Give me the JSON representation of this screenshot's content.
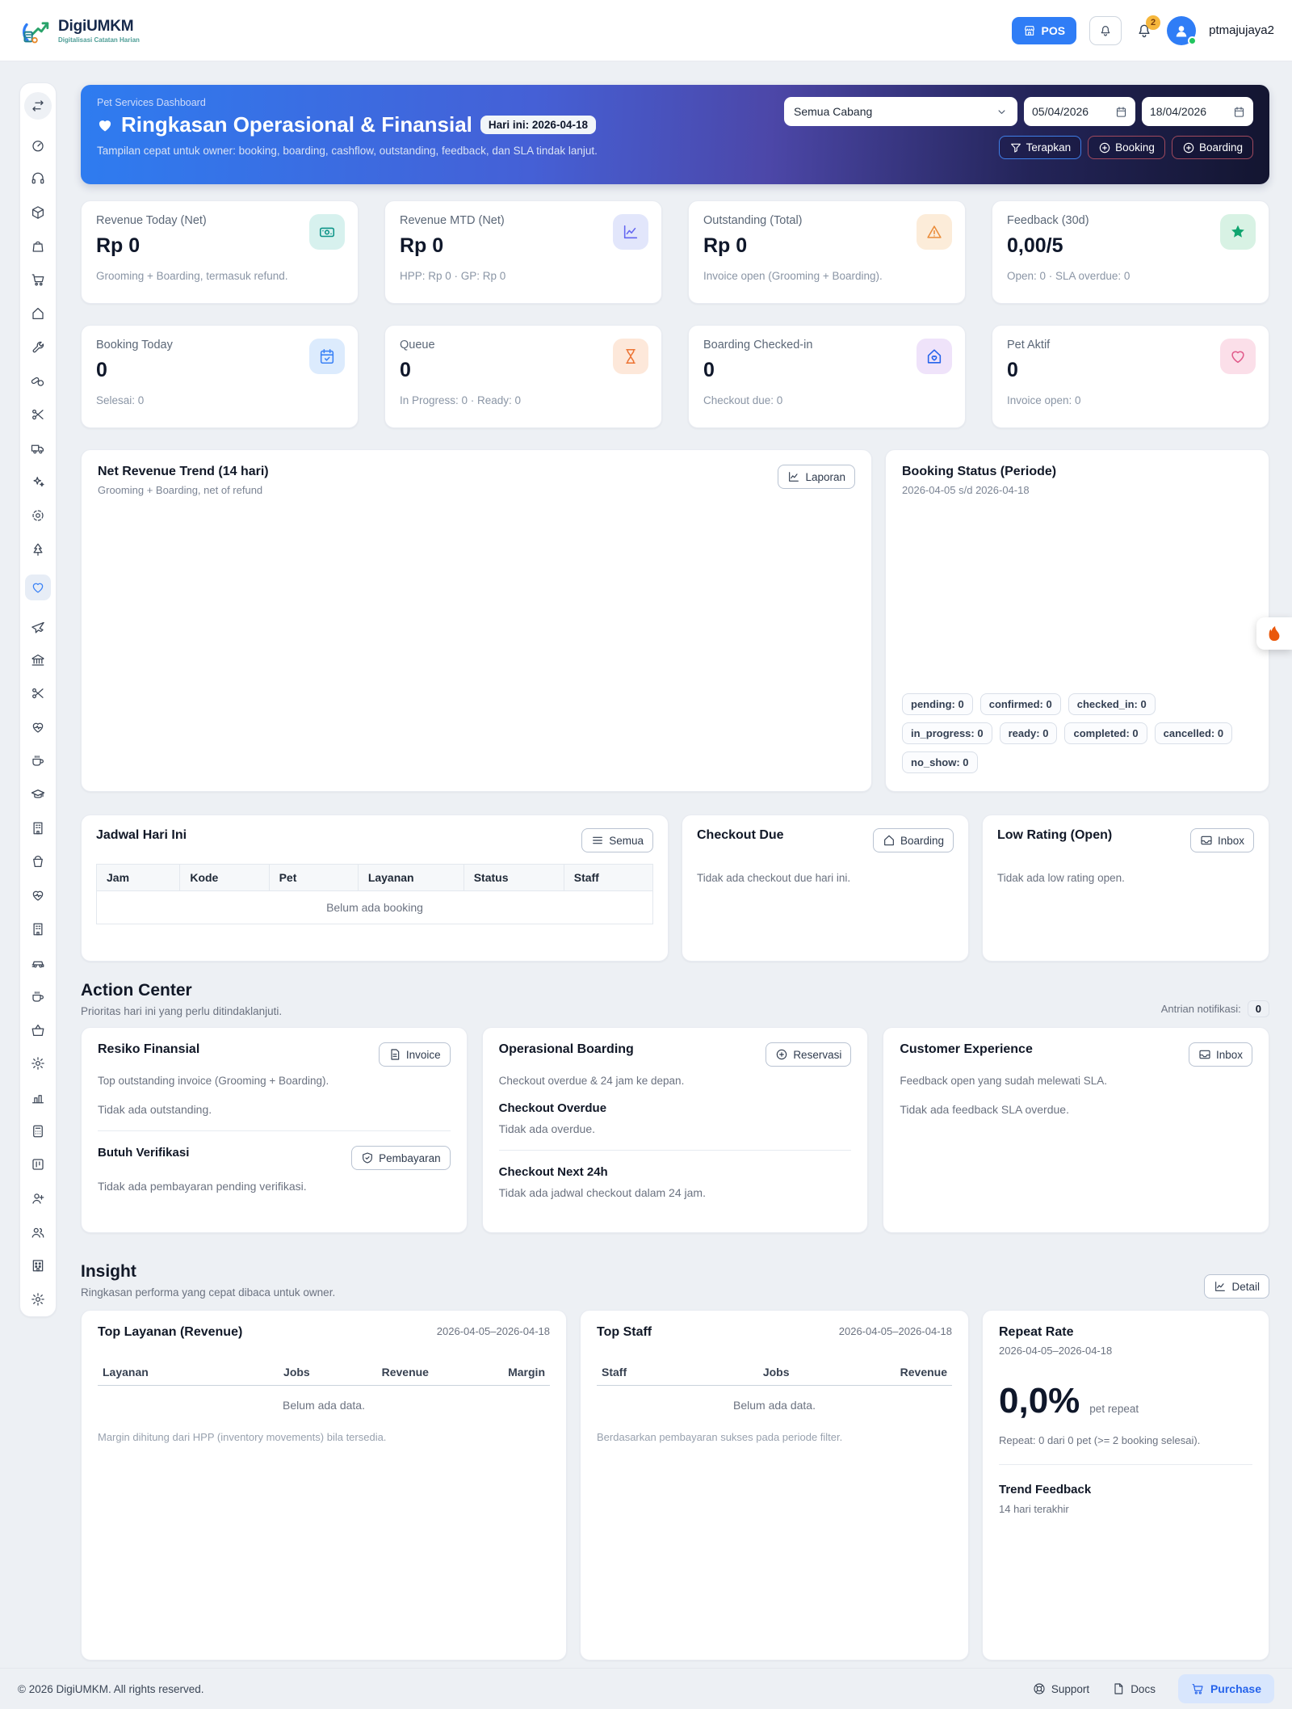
{
  "colors": {
    "accent": "#2f7df6",
    "badge_amber": "#f6b73c",
    "flame": "#ea580c"
  },
  "header": {
    "brand": {
      "name": "DigiUMKM",
      "tagline": "Digitalisasi Catatan Harian"
    },
    "pos_label": "POS",
    "notif_badge": "2",
    "username": "ptmajujaya2"
  },
  "sidebar": {
    "items": [
      {
        "icon": "arrows",
        "name": "sidebar-toggle",
        "kind": "toggle"
      },
      {
        "icon": "gauge",
        "name": "dashboard"
      },
      {
        "icon": "headset",
        "name": "support"
      },
      {
        "icon": "package",
        "name": "inventory"
      },
      {
        "icon": "bag",
        "name": "purchases"
      },
      {
        "icon": "cart",
        "name": "sales"
      },
      {
        "icon": "home",
        "name": "home"
      },
      {
        "icon": "wrench",
        "name": "services"
      },
      {
        "icon": "pills",
        "name": "pharmacy"
      },
      {
        "icon": "scissors",
        "name": "grooming"
      },
      {
        "icon": "truck",
        "name": "logistics"
      },
      {
        "icon": "sparkles",
        "name": "cleaning"
      },
      {
        "icon": "flower",
        "name": "florist"
      },
      {
        "icon": "tree",
        "name": "garden"
      },
      {
        "icon": "heart",
        "name": "pet-services",
        "active": true
      },
      {
        "icon": "plane",
        "name": "travel"
      },
      {
        "icon": "bank",
        "name": "finance"
      },
      {
        "icon": "scissors",
        "name": "salon"
      },
      {
        "icon": "heartpulse",
        "name": "clinic"
      },
      {
        "icon": "coffee",
        "name": "cafe"
      },
      {
        "icon": "grad",
        "name": "education"
      },
      {
        "icon": "building",
        "name": "property"
      },
      {
        "icon": "bucket",
        "name": "laundry"
      },
      {
        "icon": "heartpulse",
        "name": "health"
      },
      {
        "icon": "building",
        "name": "hotel"
      },
      {
        "icon": "car",
        "name": "rental"
      },
      {
        "icon": "coffee",
        "name": "fnb"
      },
      {
        "icon": "basket",
        "name": "retail"
      },
      {
        "icon": "gear",
        "name": "workshop"
      },
      {
        "icon": "chartcol",
        "name": "reports"
      },
      {
        "icon": "calc",
        "name": "accounting"
      },
      {
        "icon": "kanban",
        "name": "projects"
      },
      {
        "icon": "useradd",
        "name": "crm"
      },
      {
        "icon": "users",
        "name": "hr"
      },
      {
        "icon": "building2",
        "name": "company"
      },
      {
        "icon": "gear",
        "name": "settings"
      }
    ]
  },
  "hero": {
    "eyebrow": "Pet Services Dashboard",
    "title": "Ringkasan Operasional & Finansial",
    "today_badge": "Hari ini: 2026-04-18",
    "subtitle": "Tampilan cepat untuk owner: booking, boarding, cashflow, outstanding, feedback, dan SLA tindak lanjut.",
    "branch_select": "Semua Cabang",
    "date_from": "05/04/2026",
    "date_to": "18/04/2026",
    "btn_apply": "Terapkan",
    "btn_booking": "Booking",
    "btn_boarding": "Boarding"
  },
  "kpis": [
    {
      "label": "Revenue Today (Net)",
      "value": "Rp 0",
      "sub": "Grooming + Boarding, termasuk refund.",
      "icon": "banknote",
      "fg": "#0d9488",
      "bg": "#d7f1ee"
    },
    {
      "label": "Revenue MTD (Net)",
      "value": "Rp 0",
      "sub": "HPP: Rp 0 · GP: Rp 0",
      "icon": "linechart",
      "fg": "#6366f1",
      "bg": "#e2e6fb"
    },
    {
      "label": "Outstanding (Total)",
      "value": "Rp 0",
      "sub": "Invoice open (Grooming + Boarding).",
      "icon": "warning",
      "fg": "#ea8c3a",
      "bg": "#fcecd9"
    },
    {
      "label": "Feedback (30d)",
      "value": "0,00/5",
      "sub": "Open: 0 · SLA overdue: 0",
      "icon": "star",
      "fg": "#10a56f",
      "bg": "#d8f2e4"
    },
    {
      "label": "Booking Today",
      "value": "0",
      "sub": "Selesai: 0",
      "icon": "calcheck",
      "fg": "#3b82f6",
      "bg": "#dcebfd"
    },
    {
      "label": "Queue",
      "value": "0",
      "sub": "In Progress: 0 · Ready: 0",
      "icon": "hourglass",
      "fg": "#ed7434",
      "bg": "#fde8da"
    },
    {
      "label": "Boarding Checked-in",
      "value": "0",
      "sub": "Checkout due: 0",
      "icon": "homeheart",
      "fg": "#2563eb",
      "bg": "#efe3fa"
    },
    {
      "label": "Pet Aktif",
      "value": "0",
      "sub": "Invoice open: 0",
      "icon": "heart",
      "fg": "#e15b8b",
      "bg": "#fbdfe9"
    }
  ],
  "charts": {
    "trend": {
      "title": "Net Revenue Trend (14 hari)",
      "subtitle": "Grooming + Boarding, net of refund",
      "action": "Laporan"
    },
    "status": {
      "title": "Booking Status (Periode)",
      "subtitle": "2026-04-05 s/d 2026-04-18",
      "chips": [
        "pending: 0",
        "confirmed: 0",
        "checked_in: 0",
        "in_progress: 0",
        "ready: 0",
        "completed: 0",
        "cancelled: 0",
        "no_show: 0"
      ]
    }
  },
  "today": {
    "jadwal": {
      "title": "Jadwal Hari Ini",
      "action": "Semua",
      "columns": [
        "Jam",
        "Kode",
        "Pet",
        "Layanan",
        "Status",
        "Staff"
      ],
      "empty": "Belum ada booking"
    },
    "checkout": {
      "title": "Checkout Due",
      "action": "Boarding",
      "empty": "Tidak ada checkout due hari ini."
    },
    "lowrating": {
      "title": "Low Rating (Open)",
      "action": "Inbox",
      "empty": "Tidak ada low rating open."
    }
  },
  "action_center": {
    "title": "Action Center",
    "subtitle": "Prioritas hari ini yang perlu ditindaklanjuti.",
    "queue_label": "Antrian notifikasi:",
    "queue_count": "0",
    "finance": {
      "title": "Resiko Finansial",
      "action": "Invoice",
      "desc": "Top outstanding invoice (Grooming + Boarding).",
      "empty": "Tidak ada outstanding.",
      "title2": "Butuh Verifikasi",
      "action2": "Pembayaran",
      "empty2": "Tidak ada pembayaran pending verifikasi."
    },
    "boarding": {
      "title": "Operasional Boarding",
      "action": "Reservasi",
      "desc": "Checkout overdue & 24 jam ke depan.",
      "h1": "Checkout Overdue",
      "t1": "Tidak ada overdue.",
      "h2": "Checkout Next 24h",
      "t2": "Tidak ada jadwal checkout dalam 24 jam."
    },
    "cx": {
      "title": "Customer Experience",
      "action": "Inbox",
      "desc": "Feedback open yang sudah melewati SLA.",
      "empty": "Tidak ada feedback SLA overdue."
    }
  },
  "insight": {
    "title": "Insight",
    "subtitle": "Ringkasan performa yang cepat dibaca untuk owner.",
    "action": "Detail",
    "layanan": {
      "title": "Top Layanan (Revenue)",
      "period": "2026-04-05–2026-04-18",
      "columns": [
        "Layanan",
        "Jobs",
        "Revenue",
        "Margin"
      ],
      "empty": "Belum ada data.",
      "note": "Margin dihitung dari HPP (inventory movements) bila tersedia."
    },
    "staff": {
      "title": "Top Staff",
      "period": "2026-04-05–2026-04-18",
      "columns": [
        "Staff",
        "Jobs",
        "Revenue"
      ],
      "empty": "Belum ada data.",
      "note": "Berdasarkan pembayaran sukses pada periode filter."
    },
    "repeat": {
      "title": "Repeat Rate",
      "period": "2026-04-05–2026-04-18",
      "value": "0,0%",
      "value_label": "pet repeat",
      "detail": "Repeat: 0 dari 0 pet (>= 2 booking selesai).",
      "trend_title": "Trend Feedback",
      "trend_sub": "14 hari terakhir"
    }
  },
  "footer": {
    "copyright": "© 2026 DigiUMKM. All rights reserved.",
    "support": "Support",
    "docs": "Docs",
    "purchase": "Purchase"
  }
}
